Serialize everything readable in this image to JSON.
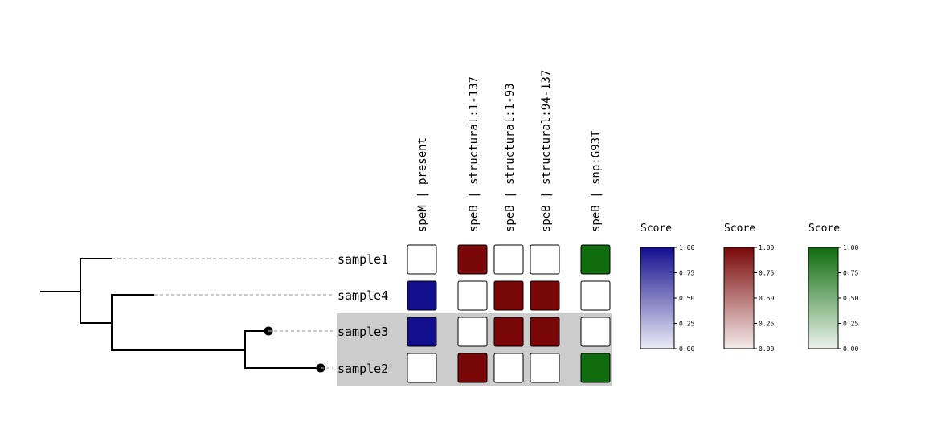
{
  "colors": {
    "highlight": "#cccccc",
    "blue": "#120e8e",
    "red": "#7a0707",
    "green": "#0e6c0e",
    "absent": "#ffffff",
    "tree": "#000000",
    "guide": "#aaaaaa"
  },
  "samples": [
    "sample1",
    "sample4",
    "sample3",
    "sample2"
  ],
  "highlighted_samples": [
    "sample3",
    "sample2"
  ],
  "columns": [
    {
      "label": "speM | present",
      "color": "blue"
    },
    {
      "label": "speB | structural:1-137",
      "color": "red"
    },
    {
      "label": "speB | structural:1-93",
      "color": "red"
    },
    {
      "label": "speB | structural:94-137",
      "color": "red"
    },
    {
      "label": "speB | snp:G93T",
      "color": "green"
    }
  ],
  "matrix": {
    "sample1": [
      0,
      1,
      0,
      0,
      1
    ],
    "sample4": [
      1,
      0,
      1,
      1,
      0
    ],
    "sample3": [
      1,
      0,
      1,
      1,
      0
    ],
    "sample2": [
      0,
      1,
      0,
      0,
      1
    ]
  },
  "legends": [
    {
      "title": "Score",
      "color": "blue",
      "ticks": [
        "1.00",
        "0.75",
        "0.50",
        "0.25",
        "0.00"
      ]
    },
    {
      "title": "Score",
      "color": "red",
      "ticks": [
        "1.00",
        "0.75",
        "0.50",
        "0.25",
        "0.00"
      ]
    },
    {
      "title": "Score",
      "color": "green",
      "ticks": [
        "1.00",
        "0.75",
        "0.50",
        "0.25",
        "0.00"
      ]
    }
  ]
}
